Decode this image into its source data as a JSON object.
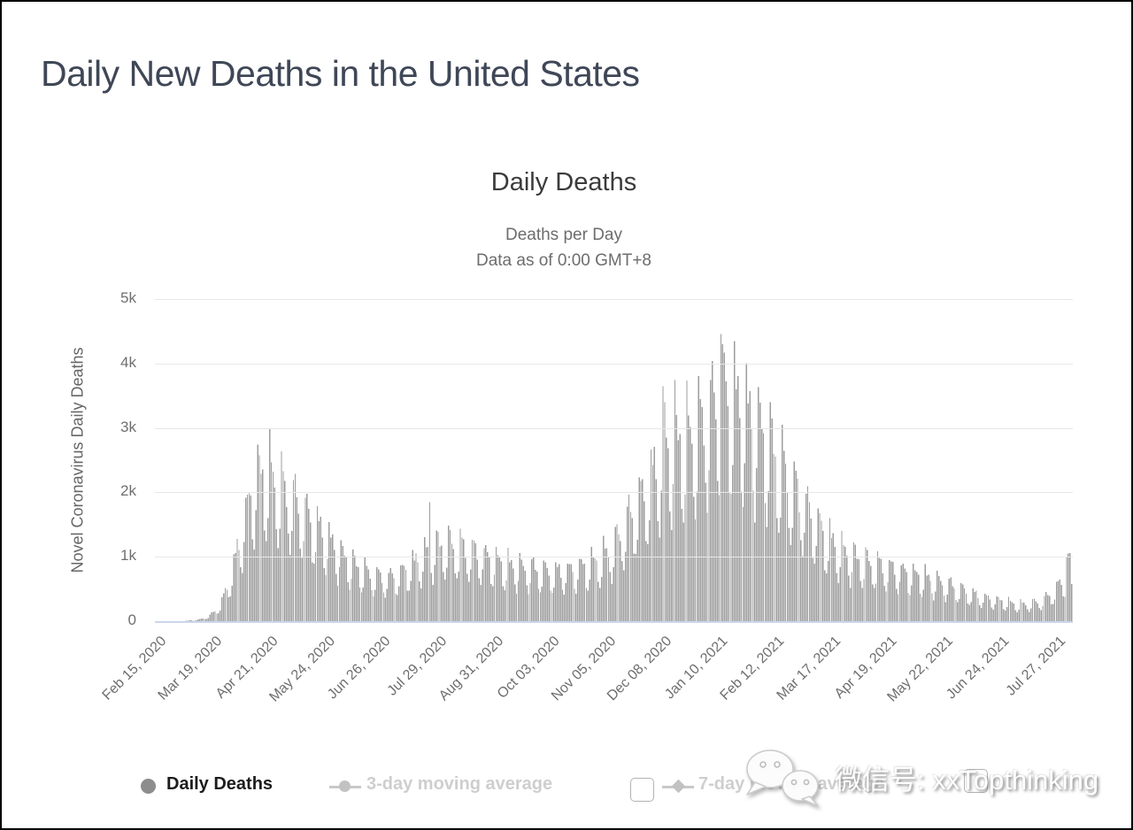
{
  "page": {
    "title": "Daily New Deaths in the United States"
  },
  "chart_data": {
    "type": "bar",
    "title": "Daily Deaths",
    "subtitle_line1": "Deaths per Day",
    "subtitle_line2": "Data as of 0:00 GMT+8",
    "ylabel": "Novel Coronavirus Daily Deaths",
    "series_name": "Daily Deaths",
    "ylim": [
      0,
      5000
    ],
    "ytick_labels": [
      "0",
      "1k",
      "2k",
      "3k",
      "4k",
      "5k"
    ],
    "grid": true,
    "bar_color": "#9c9c9c",
    "x_start_date": "Feb 15, 2020",
    "x_end_date": "Aug 6, 2021",
    "num_days": 539,
    "xtick_interval_days": 33,
    "xtick_labels": [
      "Feb 15, 2020",
      "Mar 19, 2020",
      "Apr 21, 2020",
      "May 24, 2020",
      "Jun 26, 2020",
      "Jul 29, 2020",
      "Aug 31, 2020",
      "Oct 03, 2020",
      "Nov 05, 2020",
      "Dec 08, 2020",
      "Jan 10, 2021",
      "Feb 12, 2021",
      "Mar 17, 2021",
      "Apr 19, 2021",
      "May 22, 2021",
      "Jun 24, 2021",
      "Jul 27, 2021"
    ],
    "weekly_baseline": [
      0,
      1,
      4,
      16,
      60,
      220,
      700,
      1450,
      2100,
      2150,
      1950,
      1800,
      1600,
      1400,
      1200,
      1000,
      850,
      730,
      650,
      620,
      680,
      800,
      950,
      1080,
      1120,
      1080,
      1030,
      960,
      900,
      820,
      790,
      760,
      730,
      700,
      720,
      770,
      830,
      920,
      1080,
      1400,
      1700,
      2000,
      2400,
      2600,
      2650,
      2750,
      3000,
      3300,
      3150,
      3050,
      2850,
      2600,
      2250,
      1950,
      1700,
      1450,
      1200,
      1050,
      950,
      880,
      820,
      770,
      730,
      690,
      640,
      590,
      530,
      470,
      400,
      350,
      310,
      280,
      240,
      260,
      300,
      450,
      650,
      1000
    ],
    "weekday_factor_start": "Saturday",
    "weekday_factors": [
      1.02,
      0.68,
      0.58,
      0.78,
      1.3,
      1.22,
      1.15
    ],
    "anomalies": {
      "161": 1850,
      "298": 3650,
      "299": 3400,
      "305": 3740,
      "332": 4460,
      "333": 4300,
      "340": 4350,
      "535": 1000,
      "536": 1050,
      "537": 1060,
      "538": 580
    }
  },
  "legend": {
    "items": [
      {
        "label": "Daily Deaths",
        "marker": "circle",
        "enabled": true
      },
      {
        "label": "3-day moving average",
        "marker": "line-circle",
        "enabled": false
      },
      {
        "label": "7-day moving average",
        "marker": "line-diamond",
        "enabled": false
      }
    ]
  },
  "watermark": {
    "icon": "wechat-icon",
    "text": "微信号: xxTopthinking"
  },
  "colors": {
    "page_title": "#3f4757",
    "bar": "#9c9c9c",
    "gridline": "#e7e7e7",
    "axis_line": "#ccd6eb",
    "legend_enabled_text": "#1c1c1c",
    "legend_disabled_text": "#cecece"
  }
}
